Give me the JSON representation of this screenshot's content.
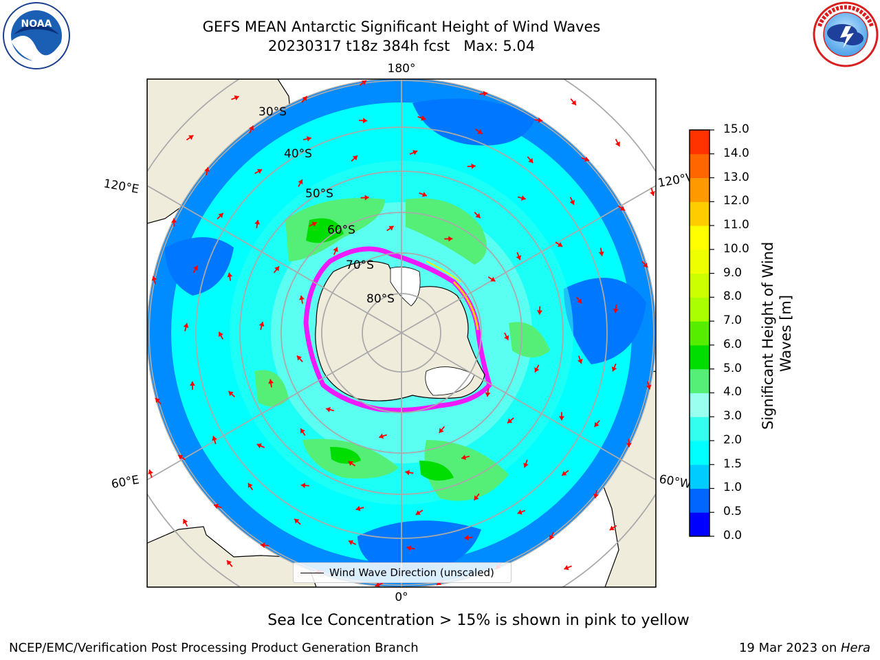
{
  "title": {
    "line1": "GEFS MEAN Antarctic Significant Height of Wind Waves",
    "line2": "20230317 t18z 384h fcst   Max: 5.04"
  },
  "logos": {
    "left": {
      "text": "NOAA",
      "ring_text": "NATIONAL OCEANIC AND ATMOSPHERIC ADMINISTRATION · U.S. DEPARTMENT OF COMMERCE",
      "icon": "noaa-logo-icon"
    },
    "right": {
      "ring_text": "NATIONAL WEATHER SERVICE",
      "icon": "nws-logo-icon"
    }
  },
  "map": {
    "longitude_labels": {
      "top": "180°",
      "left_upper": "120°E",
      "right_upper": "120°W",
      "left_lower": "60°E",
      "right_lower": "60°W",
      "bottom": "0°"
    },
    "latitude_labels": [
      "30°S",
      "40°S",
      "50°S",
      "60°S",
      "70°S",
      "80°S"
    ],
    "legend_label": "Wind Wave Direction (unscaled)",
    "arrow_color": "#ff0000",
    "land_color": "#efecdc",
    "ice_color": "#ff00ff"
  },
  "colorbar": {
    "label": "Significant Height of Wind Waves [m]",
    "ticks": [
      "0.0",
      "0.5",
      "1.0",
      "1.5",
      "2.0",
      "3.0",
      "4.0",
      "5.0",
      "6.0",
      "7.0",
      "8.0",
      "9.0",
      "10.0",
      "11.0",
      "12.0",
      "13.0",
      "14.0",
      "15.0"
    ],
    "colors": [
      "#0000ff",
      "#0066ff",
      "#00ccff",
      "#00ffff",
      "#33ffee",
      "#99ffee",
      "#55ee77",
      "#00dd00",
      "#55ee00",
      "#aaff00",
      "#ccff00",
      "#eeff00",
      "#ffff00",
      "#ffcc00",
      "#ff9900",
      "#ff6600",
      "#ff3300",
      "#ff0000"
    ]
  },
  "captions": {
    "sea_ice": "Sea Ice Concentration > 15% is shown in pink to yellow",
    "credit": "NCEP/EMC/Verification Post Processing Product Generation Branch",
    "date": "19 Mar 2023 on ",
    "machine": "Hera"
  }
}
